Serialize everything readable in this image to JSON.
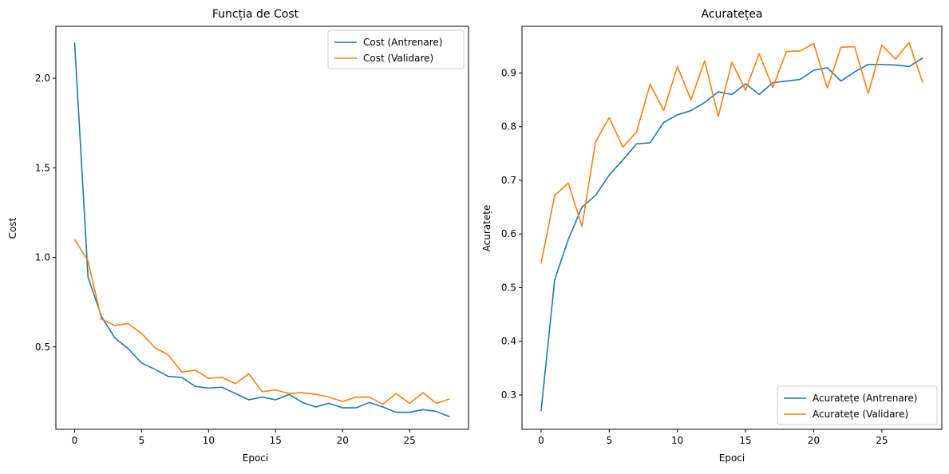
{
  "chart_data": [
    {
      "type": "line",
      "title": "Funcția de Cost",
      "xlabel": "Epoci",
      "ylabel": "Cost",
      "xlim": [
        -1.4,
        29.4
      ],
      "ylim": [
        0.04,
        2.29
      ],
      "xticks": [
        0,
        5,
        10,
        15,
        20,
        25
      ],
      "yticks": [
        0.5,
        1.0,
        1.5,
        2.0
      ],
      "ytick_labels": [
        "0.5",
        "1.0",
        "1.5",
        "2.0"
      ],
      "legend_position": "top-right",
      "grid": false,
      "x": [
        0,
        1,
        2,
        3,
        4,
        5,
        6,
        7,
        8,
        9,
        10,
        11,
        12,
        13,
        14,
        15,
        16,
        17,
        18,
        19,
        20,
        21,
        22,
        23,
        24,
        25,
        26,
        27,
        28
      ],
      "series": [
        {
          "name": "Cost (Antrenare)",
          "color": "#1f77b4",
          "values": [
            2.2,
            0.89,
            0.67,
            0.55,
            0.49,
            0.41,
            0.375,
            0.335,
            0.33,
            0.28,
            0.27,
            0.275,
            0.24,
            0.205,
            0.22,
            0.205,
            0.235,
            0.19,
            0.165,
            0.185,
            0.16,
            0.16,
            0.19,
            0.165,
            0.135,
            0.135,
            0.15,
            0.14,
            0.11
          ]
        },
        {
          "name": "Cost (Validare)",
          "color": "#ff7f0e",
          "values": [
            1.1,
            0.98,
            0.655,
            0.62,
            0.63,
            0.575,
            0.495,
            0.455,
            0.36,
            0.37,
            0.325,
            0.33,
            0.295,
            0.35,
            0.25,
            0.26,
            0.24,
            0.245,
            0.235,
            0.22,
            0.195,
            0.22,
            0.22,
            0.18,
            0.24,
            0.185,
            0.245,
            0.185,
            0.21
          ]
        }
      ]
    },
    {
      "type": "line",
      "title": "Acuratețea",
      "xlabel": "Epoci",
      "ylabel": "Acuratețe",
      "xlim": [
        -1.4,
        29.4
      ],
      "ylim": [
        0.236,
        0.987
      ],
      "xticks": [
        0,
        5,
        10,
        15,
        20,
        25
      ],
      "yticks": [
        0.3,
        0.4,
        0.5,
        0.6,
        0.7,
        0.8,
        0.9
      ],
      "ytick_labels": [
        "0.3",
        "0.4",
        "0.5",
        "0.6",
        "0.7",
        "0.8",
        "0.9"
      ],
      "legend_position": "bottom-right",
      "grid": false,
      "x": [
        0,
        1,
        2,
        3,
        4,
        5,
        6,
        7,
        8,
        9,
        10,
        11,
        12,
        13,
        14,
        15,
        16,
        17,
        18,
        19,
        20,
        21,
        22,
        23,
        24,
        25,
        26,
        27,
        28
      ],
      "series": [
        {
          "name": "Acuratețe (Antrenare)",
          "color": "#1f77b4",
          "values": [
            0.27,
            0.515,
            0.59,
            0.65,
            0.672,
            0.71,
            0.738,
            0.768,
            0.77,
            0.808,
            0.822,
            0.83,
            0.845,
            0.865,
            0.86,
            0.88,
            0.86,
            0.882,
            0.885,
            0.888,
            0.905,
            0.91,
            0.885,
            0.902,
            0.916,
            0.916,
            0.915,
            0.912,
            0.928
          ]
        },
        {
          "name": "Acuratețe (Validare)",
          "color": "#ff7f0e",
          "values": [
            0.545,
            0.672,
            0.695,
            0.614,
            0.772,
            0.817,
            0.762,
            0.79,
            0.879,
            0.83,
            0.912,
            0.85,
            0.923,
            0.819,
            0.92,
            0.868,
            0.936,
            0.873,
            0.94,
            0.941,
            0.955,
            0.872,
            0.948,
            0.949,
            0.862,
            0.952,
            0.926,
            0.957,
            0.882
          ]
        }
      ]
    }
  ]
}
